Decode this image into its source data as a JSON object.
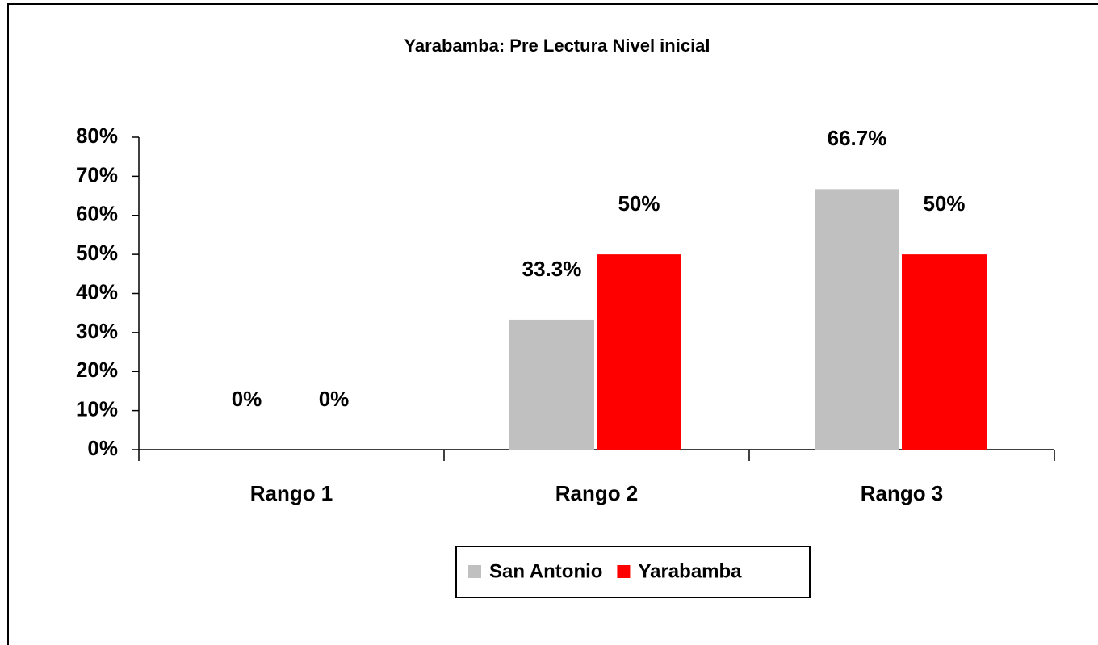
{
  "chart_data": {
    "type": "bar",
    "title": "Yarabamba: Pre Lectura Nivel inicial",
    "categories": [
      "Rango 1",
      "Rango 2",
      "Rango 3"
    ],
    "series": [
      {
        "name": "San Antonio",
        "color": "#c0c0c0",
        "values": [
          0,
          33.3,
          66.7
        ],
        "value_labels": [
          "0%",
          "33.3%",
          "66.7%"
        ]
      },
      {
        "name": "Yarabamba",
        "color": "#ff0000",
        "values": [
          0,
          50,
          50
        ],
        "value_labels": [
          "0%",
          "50%",
          "50%"
        ]
      }
    ],
    "ylim": [
      0,
      80
    ],
    "yticks": [
      {
        "value": 0,
        "label": "0%"
      },
      {
        "value": 10,
        "label": "10%"
      },
      {
        "value": 20,
        "label": "20%"
      },
      {
        "value": 30,
        "label": "30%"
      },
      {
        "value": 40,
        "label": "40%"
      },
      {
        "value": 50,
        "label": "50%"
      },
      {
        "value": 60,
        "label": "60%"
      },
      {
        "value": 70,
        "label": "70%"
      },
      {
        "value": 80,
        "label": "80%"
      }
    ],
    "legend": "bottom"
  }
}
